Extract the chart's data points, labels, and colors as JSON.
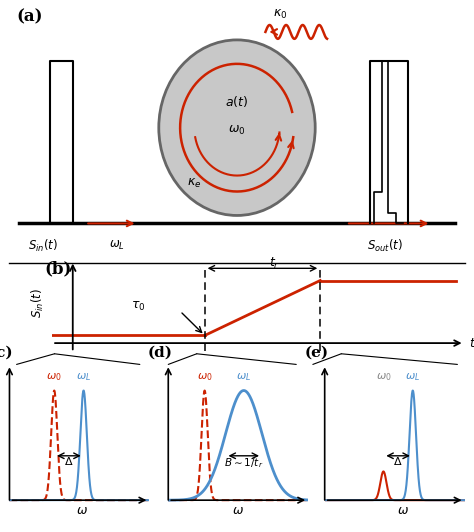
{
  "fig_width": 4.74,
  "fig_height": 5.32,
  "dpi": 100,
  "bg_color": "#ffffff",
  "red_color": "#cc2200",
  "blue_color": "#4d8fcc",
  "black": "#000000",
  "gray_fill": "#c8c8c8",
  "gray_edge": "#666666",
  "panel_a_label": "(a)",
  "panel_b_label": "(b)",
  "panel_c_label": "(c)",
  "panel_d_label": "(d)",
  "panel_e_label": "(e)"
}
